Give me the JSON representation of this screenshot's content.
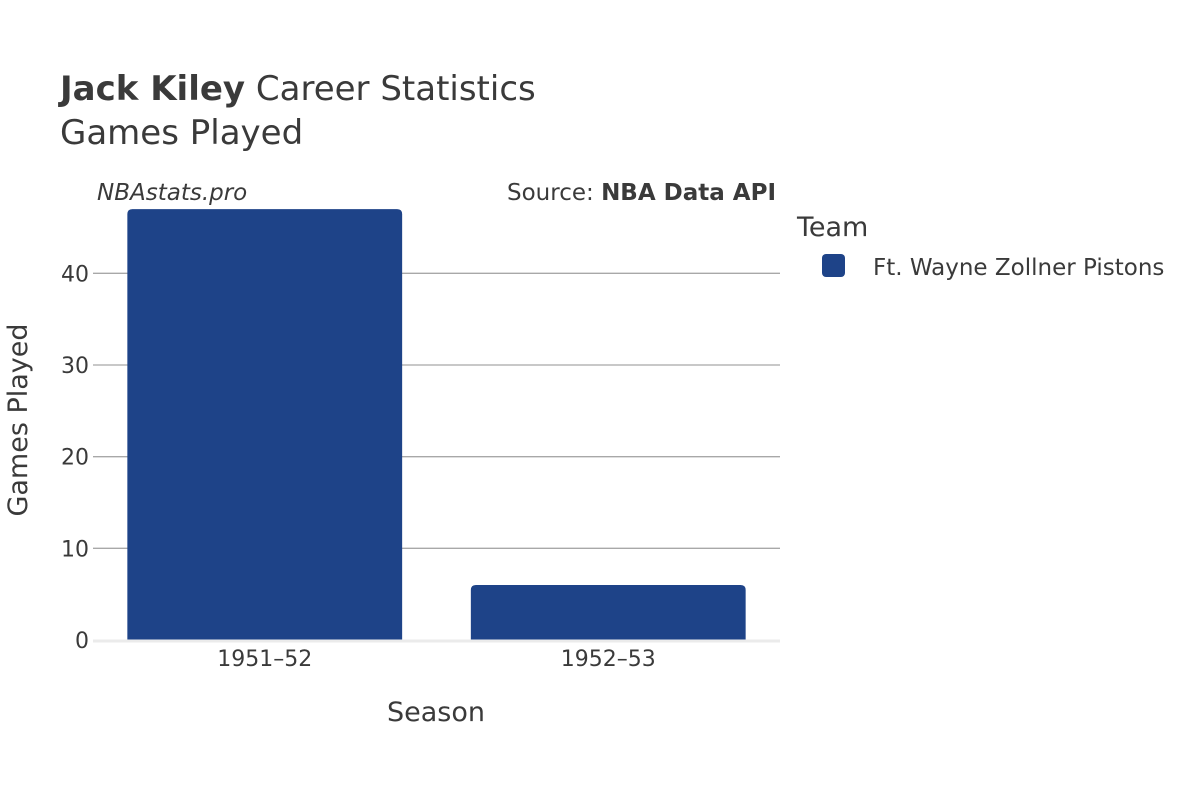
{
  "header": {
    "player_name": "Jack Kiley",
    "title_rest": " Career Statistics",
    "subtitle": "Games Played"
  },
  "credits": {
    "site": "NBAstats.pro",
    "source_prefix": "Source: ",
    "source_name": "NBA Data API"
  },
  "legend": {
    "title": "Team",
    "items": [
      {
        "label": "Ft. Wayne Zollner Pistons",
        "color": "#1e4388"
      }
    ]
  },
  "chart_data": {
    "type": "bar",
    "title": "Jack Kiley Career Statistics",
    "subtitle": "Games Played",
    "xlabel": "Season",
    "ylabel": "Games Played",
    "categories": [
      "1951–52",
      "1952–53"
    ],
    "series": [
      {
        "name": "Ft. Wayne Zollner Pistons",
        "values": [
          47,
          6
        ],
        "color": "#1e4388"
      }
    ],
    "ylim": [
      0,
      48
    ],
    "yticks": [
      0,
      10,
      20,
      30,
      40
    ],
    "grid": true,
    "legend_position": "right"
  }
}
